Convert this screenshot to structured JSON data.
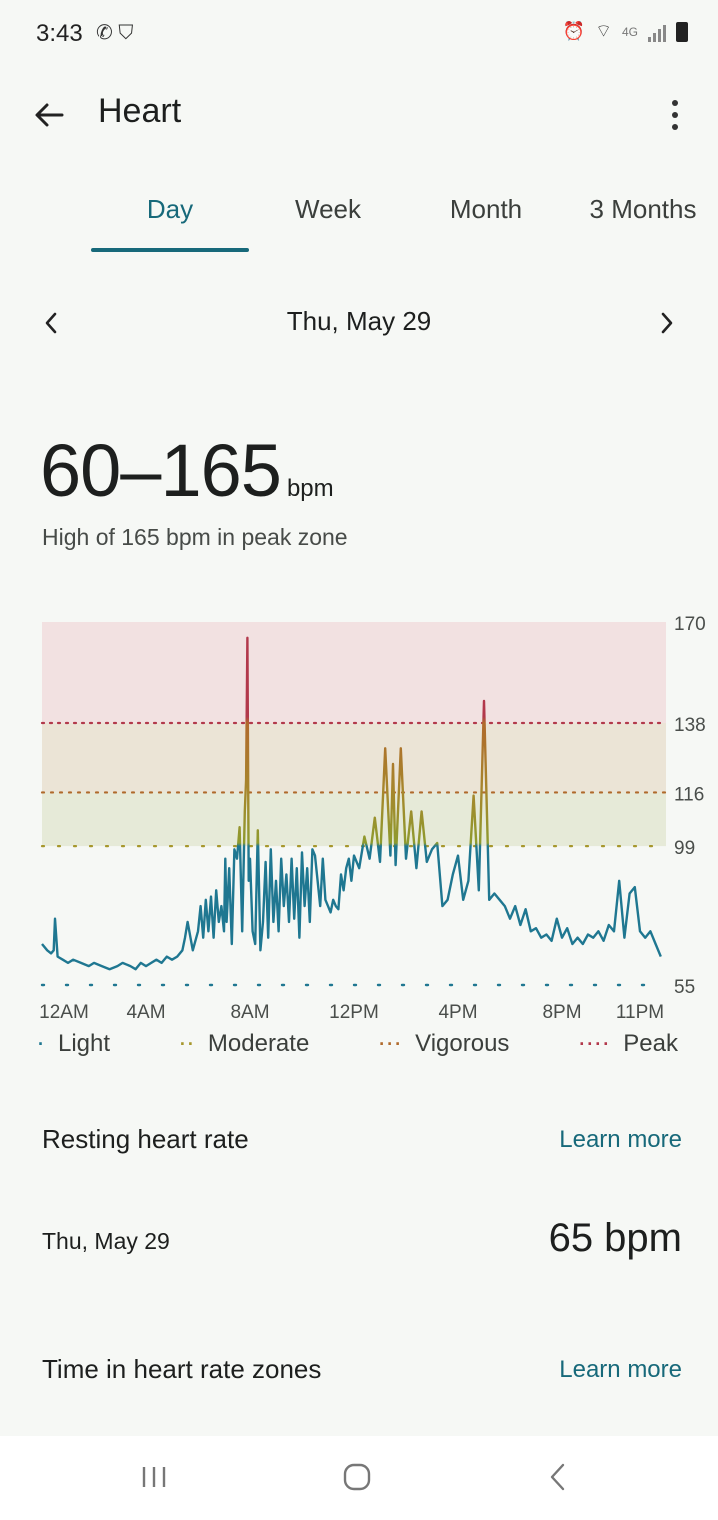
{
  "status": {
    "time": "3:43",
    "network": "4G"
  },
  "header": {
    "title": "Heart"
  },
  "tabs": [
    {
      "label": "Day",
      "active": true
    },
    {
      "label": "Week",
      "active": false
    },
    {
      "label": "Month",
      "active": false
    },
    {
      "label": "3 Months",
      "active": false
    }
  ],
  "date_nav": {
    "label": "Thu, May 29",
    "prev_icon": "chevron-left-icon",
    "next_icon": "chevron-right-icon"
  },
  "summary": {
    "range": "60–165",
    "unit": "bpm",
    "subtitle": "High of 165 bpm in peak zone"
  },
  "chart_data": {
    "type": "line",
    "x_tick_labels": [
      "12AM",
      "4AM",
      "8AM",
      "12PM",
      "4PM",
      "8PM",
      "11PM"
    ],
    "y_tick_labels": [
      "170",
      "138",
      "116",
      "99",
      "55"
    ],
    "ylim": [
      55,
      170
    ],
    "zones": [
      {
        "name": "Light",
        "from": 55,
        "to": 99,
        "color": "#1f7791"
      },
      {
        "name": "Moderate",
        "from": 99,
        "to": 116,
        "color": "#a6972c"
      },
      {
        "name": "Vigorous",
        "from": 116,
        "to": 138,
        "color": "#b06a2c"
      },
      {
        "name": "Peak",
        "from": 138,
        "to": 170,
        "color": "#b2384b"
      }
    ],
    "series": [
      {
        "x": [
          0.0,
          0.2,
          0.35,
          0.45,
          0.5,
          0.6,
          0.8,
          1.0,
          1.2,
          1.5,
          1.8,
          2.0,
          2.3,
          2.6,
          2.9,
          3.1,
          3.4,
          3.6,
          3.8,
          4.0,
          4.2,
          4.4,
          4.6,
          4.8,
          5.0,
          5.2,
          5.4,
          5.5,
          5.6,
          5.8,
          6.0,
          6.1,
          6.2,
          6.3,
          6.4,
          6.5,
          6.6,
          6.7,
          6.8,
          6.9,
          7.0,
          7.05,
          7.1,
          7.2,
          7.3,
          7.4,
          7.5,
          7.6,
          7.7,
          7.8,
          7.85,
          7.9,
          7.95,
          8.0,
          8.1,
          8.2,
          8.3,
          8.4,
          8.5,
          8.6,
          8.7,
          8.8,
          8.9,
          9.0,
          9.1,
          9.2,
          9.3,
          9.4,
          9.5,
          9.6,
          9.7,
          9.8,
          9.9,
          10.0,
          10.1,
          10.2,
          10.3,
          10.4,
          10.5,
          10.6,
          10.7,
          10.8,
          10.9,
          11.0,
          11.1,
          11.2,
          11.3,
          11.4,
          11.5,
          11.6,
          11.7,
          11.8,
          11.9,
          12.0,
          12.2,
          12.4,
          12.6,
          12.8,
          13.0,
          13.2,
          13.4,
          13.5,
          13.6,
          13.8,
          14.0,
          14.2,
          14.4,
          14.6,
          14.8,
          15.0,
          15.2,
          15.4,
          15.6,
          15.8,
          16.0,
          16.2,
          16.4,
          16.6,
          16.8,
          17.0,
          17.2,
          17.4,
          17.6,
          17.8,
          18.0,
          18.2,
          18.4,
          18.6,
          18.8,
          19.0,
          19.2,
          19.4,
          19.6,
          19.8,
          20.0,
          20.2,
          20.4,
          20.6,
          20.8,
          21.0,
          21.2,
          21.4,
          21.6,
          21.8,
          22.0,
          22.2,
          22.4,
          22.6,
          22.8,
          23.0,
          23.2,
          23.4,
          23.6,
          23.8
        ],
        "y": [
          68,
          66,
          65,
          66,
          76,
          64,
          63,
          62,
          63,
          62,
          61,
          62,
          61,
          60,
          61,
          62,
          61,
          60,
          62,
          61,
          62,
          63,
          62,
          64,
          63,
          64,
          66,
          70,
          75,
          66,
          72,
          80,
          70,
          82,
          72,
          83,
          70,
          85,
          75,
          80,
          72,
          95,
          75,
          92,
          68,
          98,
          95,
          105,
          72,
          110,
          120,
          165,
          88,
          95,
          72,
          68,
          104,
          66,
          75,
          94,
          70,
          98,
          75,
          88,
          72,
          95,
          80,
          90,
          75,
          95,
          76,
          92,
          70,
          97,
          80,
          92,
          75,
          98,
          96,
          88,
          80,
          95,
          82,
          80,
          78,
          82,
          80,
          79,
          90,
          85,
          92,
          95,
          88,
          96,
          92,
          102,
          95,
          108,
          94,
          130,
          96,
          125,
          93,
          130,
          95,
          110,
          92,
          110,
          94,
          98,
          100,
          80,
          82,
          90,
          96,
          82,
          88,
          115,
          85,
          145,
          82,
          84,
          82,
          80,
          76,
          80,
          74,
          79,
          72,
          73,
          70,
          71,
          69,
          76,
          70,
          73,
          68,
          70,
          68,
          71,
          70,
          72,
          69,
          74,
          72,
          88,
          70,
          84,
          86,
          72,
          70,
          72,
          68,
          64
        ]
      }
    ]
  },
  "legend": {
    "items": [
      {
        "label": "Light",
        "dots": "·",
        "color": "#1f7791"
      },
      {
        "label": "Moderate",
        "dots": "··",
        "color": "#a6972c"
      },
      {
        "label": "Vigorous",
        "dots": "···",
        "color": "#b06a2c"
      },
      {
        "label": "Peak",
        "dots": "····",
        "color": "#b2384b"
      }
    ]
  },
  "resting": {
    "title": "Resting heart rate",
    "learn_more": "Learn more",
    "date": "Thu, May 29",
    "value": "65 bpm"
  },
  "zones_section": {
    "title": "Time in heart rate zones",
    "learn_more": "Learn more"
  },
  "colors": {
    "accent": "#17697a",
    "background": "#f6f8f5"
  }
}
